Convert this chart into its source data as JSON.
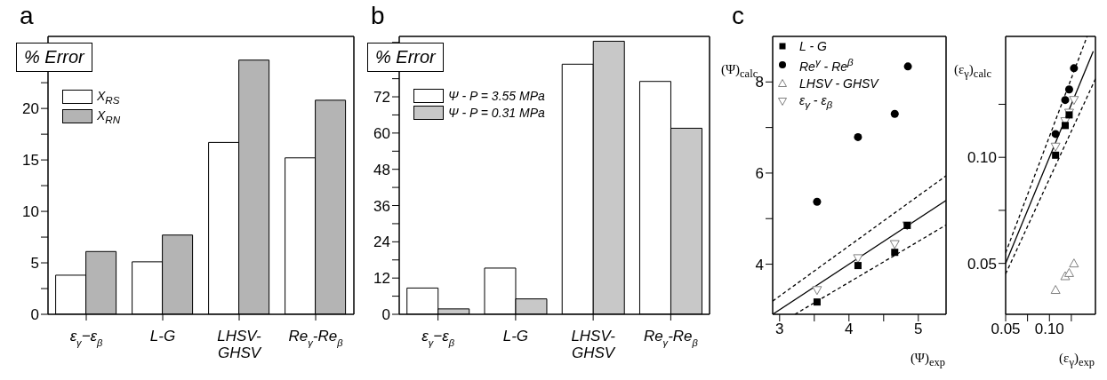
{
  "chart_data": [
    {
      "type": "bar",
      "title": "a",
      "ylabel": "% Error",
      "categories": [
        "ε$_{γ}$−ε$_{β}$",
        "L-G",
        "LHSV-GHSV",
        "Re$_{γ}$-Re$_{β}$"
      ],
      "series": [
        {
          "name": "X$_{RS}$",
          "color": "#ffffff",
          "values": [
            3.8,
            5.1,
            16.7,
            15.2
          ]
        },
        {
          "name": "X$_{RN}$",
          "color": "#b4b4b4",
          "values": [
            6.1,
            7.7,
            24.7,
            20.8
          ]
        }
      ],
      "ylim": [
        0,
        27
      ],
      "yticks": [
        0,
        {
          "value": 2.5,
          "label": null
        },
        5,
        {
          "value": 7.5,
          "label": null
        },
        10,
        {
          "value": 12.5,
          "label": null
        },
        15,
        {
          "value": 17.5,
          "label": null
        },
        20,
        {
          "value": 22.5,
          "label": null
        },
        {
          "value": 25,
          "label": null
        }
      ],
      "legend": "top left"
    },
    {
      "type": "bar",
      "title": "b",
      "ylabel": "% Error",
      "categories": [
        "ε$_{γ}$−ε$_{β}$",
        "L-G",
        "LHSV-GHSV",
        "Re$_{γ}$-Re$_{β}$"
      ],
      "series": [
        {
          "name": "Ψ - P = 3.55 MPa",
          "color": "#ffffff",
          "values": [
            8.7,
            15.3,
            82.8,
            77.1
          ]
        },
        {
          "name": "Ψ - P = 0.31 MPa",
          "color": "#c8c8c8",
          "values": [
            1.8,
            5.1,
            90.4,
            61.6
          ]
        }
      ],
      "ylim": [
        0,
        92
      ],
      "yticks": [
        0,
        {
          "value": 6,
          "label": null
        },
        12,
        {
          "value": 18,
          "label": null
        },
        24,
        {
          "value": 30,
          "label": null
        },
        36,
        {
          "value": 42,
          "label": null
        },
        48,
        {
          "value": 54,
          "label": null
        },
        60,
        {
          "value": 66,
          "label": null
        },
        72,
        {
          "value": 78,
          "label": null
        },
        {
          "value": 84,
          "label": null
        },
        {
          "value": 90,
          "label": null
        }
      ],
      "legend": "top left"
    },
    {
      "type": "scatter",
      "title": "c",
      "xlabel": "(Ψ)$_{exp}$",
      "ylabel": "(Ψ)$_{calc}$",
      "series": [
        {
          "name": "L - G",
          "color": "#000000",
          "marker": "square",
          "x": [
            3.54,
            4.13,
            4.66,
            4.84
          ],
          "values": [
            3.17,
            3.97,
            4.26,
            4.85
          ]
        },
        {
          "name": "Re$^{γ}$ - Re$^{β}$",
          "color": "#000000",
          "marker": "circle",
          "x": [
            3.54,
            4.13,
            4.66,
            4.85
          ],
          "values": [
            5.37,
            6.79,
            7.3,
            8.34
          ]
        },
        {
          "name": "LHSV - GHSV",
          "color": "#808080",
          "marker": "triangle"
        },
        {
          "name": "ε$_{γ}$ - ε$_{β}$",
          "color": "#808080",
          "marker": "triangle-down",
          "x": [
            3.54,
            4.13,
            4.66,
            4.84
          ],
          "values": [
            3.43,
            4.13,
            4.44,
            4.85
          ]
        },
        {
          "type": "line",
          "color": "#000000",
          "line_style": "solid",
          "x": [
            2.9,
            5.4
          ],
          "values": [
            2.9,
            5.4
          ]
        },
        {
          "type": "line",
          "color": "#000000",
          "line_style": "dashed",
          "x": [
            2.9,
            5.4
          ],
          "values": [
            3.19,
            5.94
          ]
        },
        {
          "type": "line",
          "color": "#000000",
          "line_style": "dashed",
          "x": [
            3.22,
            5.4
          ],
          "values": [
            2.9,
            4.86
          ]
        }
      ],
      "xlim": [
        2.9,
        5.4
      ],
      "xticks": [
        3,
        {
          "value": 3.5,
          "label": null
        },
        4,
        {
          "value": 4.5,
          "label": null
        },
        5
      ],
      "ylim": [
        2.9,
        9
      ],
      "yticks": [
        4,
        {
          "value": 5,
          "label": null
        },
        6,
        {
          "value": 7,
          "label": null
        },
        8
      ],
      "legend": "top left"
    },
    {
      "type": "scatter",
      "xlabel": "(ε$_{γ}$)$_{exp}$",
      "ylabel": "(ε$_{γ}$)$_{calc}$",
      "series": [
        {
          "color": "#000000",
          "marker": "square",
          "x": [
            0.107,
            0.118,
            0.1225
          ],
          "values": [
            0.101,
            0.115,
            0.12
          ]
        },
        {
          "color": "#000000",
          "marker": "circle",
          "x": [
            0.107,
            0.118,
            0.1225,
            0.128
          ],
          "values": [
            0.111,
            0.127,
            0.132,
            0.142
          ]
        },
        {
          "color": "#808080",
          "marker": "triangle",
          "x": [
            0.107,
            0.118,
            0.1225,
            0.128
          ],
          "values": [
            0.0375,
            0.044,
            0.0455,
            0.05
          ]
        },
        {
          "color": "#808080",
          "marker": "triangle-down",
          "x": [
            0.107,
            0.118,
            0.1225,
            0.128
          ],
          "values": [
            0.105,
            0.117,
            0.121,
            0.127
          ]
        },
        {
          "type": "line",
          "color": "#000000",
          "line_style": "solid",
          "x": [
            0.05,
            0.15
          ],
          "values": [
            0.05,
            0.15
          ]
        },
        {
          "type": "line",
          "color": "#000000",
          "line_style": "dashed",
          "x": [
            0.05,
            0.143
          ],
          "values": [
            0.055,
            0.157
          ]
        },
        {
          "type": "line",
          "color": "#000000",
          "line_style": "dashed",
          "x": [
            0.05,
            0.1525
          ],
          "values": [
            0.045,
            0.137
          ]
        }
      ],
      "xlim": [
        0.05,
        0.1525
      ],
      "xticks": [
        {
          "value": 0.05,
          "label": "0.05"
        },
        {
          "value": 0.075,
          "label": null
        },
        {
          "value": 0.1,
          "label": "0.10"
        },
        {
          "value": 0.125,
          "label": null
        }
      ],
      "ylim": [
        0.026,
        0.157
      ],
      "yticks": [
        {
          "value": 0.05,
          "label": "0.05"
        },
        {
          "value": 0.075,
          "label": null
        },
        {
          "value": 0.1,
          "label": "0.10"
        },
        {
          "value": 0.125,
          "label": null
        }
      ]
    }
  ]
}
